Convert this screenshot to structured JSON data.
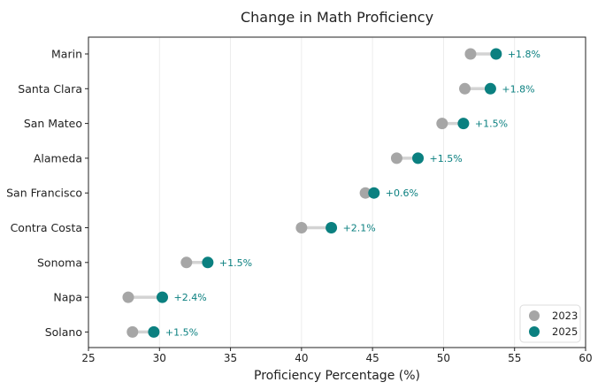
{
  "chart_data": {
    "type": "dumbbell",
    "title": "Change in Math Proficiency",
    "xlabel": "Proficiency Percentage (%)",
    "ylabel": "",
    "xlim": [
      25,
      60
    ],
    "xticks": [
      25,
      30,
      35,
      40,
      45,
      50,
      55,
      60
    ],
    "grid": "vertical",
    "legend_position": "bottom-right",
    "colors": {
      "2023": "#a6a6a6",
      "2025": "#0b8080",
      "connector": "#d3d3d3",
      "delta_text": "#0b8080"
    },
    "series": [
      {
        "name": "2023",
        "color": "#a6a6a6"
      },
      {
        "name": "2025",
        "color": "#0b8080"
      }
    ],
    "rows": [
      {
        "category": "Marin",
        "v2023": 51.9,
        "v2025": 53.7,
        "delta_label": "+1.8%"
      },
      {
        "category": "Santa Clara",
        "v2023": 51.5,
        "v2025": 53.3,
        "delta_label": "+1.8%"
      },
      {
        "category": "San Mateo",
        "v2023": 49.9,
        "v2025": 51.4,
        "delta_label": "+1.5%"
      },
      {
        "category": "Alameda",
        "v2023": 46.7,
        "v2025": 48.2,
        "delta_label": "+1.5%"
      },
      {
        "category": "San Francisco",
        "v2023": 44.5,
        "v2025": 45.1,
        "delta_label": "+0.6%"
      },
      {
        "category": "Contra Costa",
        "v2023": 40.0,
        "v2025": 42.1,
        "delta_label": "+2.1%"
      },
      {
        "category": "Sonoma",
        "v2023": 31.9,
        "v2025": 33.4,
        "delta_label": "+1.5%"
      },
      {
        "category": "Napa",
        "v2023": 27.8,
        "v2025": 30.2,
        "delta_label": "+2.4%"
      },
      {
        "category": "Solano",
        "v2023": 28.1,
        "v2025": 29.6,
        "delta_label": "+1.5%"
      }
    ]
  }
}
